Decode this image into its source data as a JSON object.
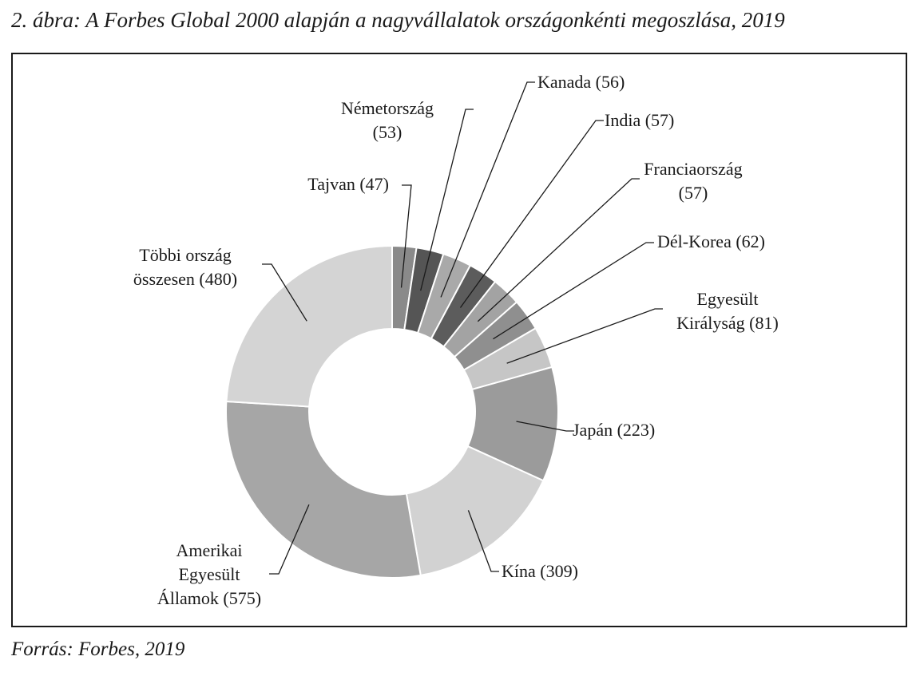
{
  "title": "2. ábra: A Forbes Global 2000 alapján a nagyvállalatok országonkénti megoszlása, 2019",
  "source": "Forrás: Forbes, 2019",
  "chart_data": {
    "type": "pie",
    "donut": true,
    "series": [
      {
        "slices": [
          {
            "name": "Tajvan",
            "value": 47,
            "lines": [
              "Tajvan (47)"
            ],
            "color": "#8a8a8a"
          },
          {
            "name": "Németország",
            "value": 53,
            "lines": [
              "Németország",
              "(53)"
            ],
            "color": "#555555"
          },
          {
            "name": "Kanada",
            "value": 56,
            "lines": [
              "Kanada (56)"
            ],
            "color": "#a9a9a9"
          },
          {
            "name": "India",
            "value": 57,
            "lines": [
              "India (57)"
            ],
            "color": "#5c5c5c"
          },
          {
            "name": "Franciaország",
            "value": 57,
            "lines": [
              "Franciaország",
              "(57)"
            ],
            "color": "#a3a3a3"
          },
          {
            "name": "Dél-Korea",
            "value": 62,
            "lines": [
              "Dél-Korea (62)"
            ],
            "color": "#8f8f8f"
          },
          {
            "name": "Egyesült Királyság",
            "value": 81,
            "lines": [
              "Egyesült",
              "Királyság (81)"
            ],
            "color": "#c6c6c6"
          },
          {
            "name": "Japán",
            "value": 223,
            "lines": [
              "Japán (223)"
            ],
            "color": "#9b9b9b"
          },
          {
            "name": "Kína",
            "value": 309,
            "lines": [
              "Kína (309)"
            ],
            "color": "#d2d2d2"
          },
          {
            "name": "Amerikai Egyesült Államok",
            "value": 575,
            "lines": [
              "Amerikai",
              "Egyesült",
              "Államok (575)"
            ],
            "color": "#a6a6a6"
          },
          {
            "name": "Többi ország összesen",
            "value": 480,
            "lines": [
              "Többi ország",
              "összesen (480)"
            ],
            "color": "#d4d4d4"
          }
        ]
      }
    ]
  }
}
